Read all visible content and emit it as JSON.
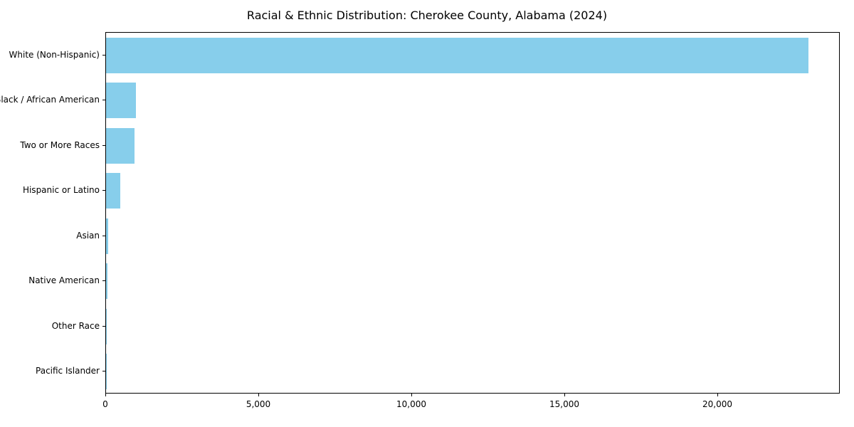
{
  "chart_data": {
    "type": "bar",
    "orientation": "horizontal",
    "title": "Racial & Ethnic Distribution: Cherokee County, Alabama (2024)",
    "categories": [
      "White (Non-Hispanic)",
      "Black / African American",
      "Two or More Races",
      "Hispanic or Latino",
      "Asian",
      "Native American",
      "Other Race",
      "Pacific Islander"
    ],
    "values": [
      22950,
      980,
      930,
      470,
      70,
      45,
      25,
      10
    ],
    "bar_color": "#87CEEB",
    "xlabel": "",
    "ylabel": "",
    "xlim": [
      0,
      24000
    ],
    "xticks": [
      0,
      5000,
      10000,
      15000,
      20000
    ],
    "xtick_labels": [
      "0",
      "5,000",
      "10,000",
      "15,000",
      "20,000"
    ],
    "grid": false,
    "legend": false
  }
}
